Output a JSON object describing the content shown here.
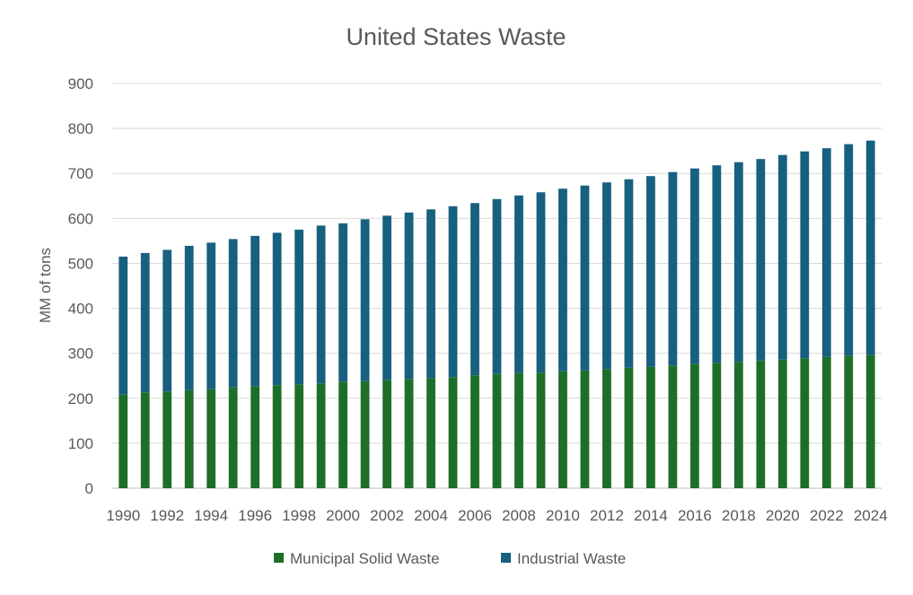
{
  "chart_data": {
    "type": "bar",
    "stacked": true,
    "title": "United States Waste",
    "xlabel": "",
    "ylabel": "MM of tons",
    "ylim": [
      0,
      900
    ],
    "yticks": [
      0,
      100,
      200,
      300,
      400,
      500,
      600,
      700,
      800,
      900
    ],
    "grid": true,
    "legend_position": "bottom",
    "categories": [
      "1990",
      "1991",
      "1992",
      "1993",
      "1994",
      "1995",
      "1996",
      "1997",
      "1998",
      "1999",
      "2000",
      "2001",
      "2002",
      "2003",
      "2004",
      "2005",
      "2006",
      "2007",
      "2008",
      "2009",
      "2010",
      "2011",
      "2012",
      "2013",
      "2014",
      "2015",
      "2016",
      "2017",
      "2018",
      "2019",
      "2020",
      "2021",
      "2022",
      "2023",
      "2024"
    ],
    "xtick_labels": [
      "1990",
      "1992",
      "1994",
      "1996",
      "1998",
      "2000",
      "2002",
      "2004",
      "2006",
      "2008",
      "2010",
      "2012",
      "2014",
      "2016",
      "2018",
      "2020",
      "2022",
      "2024"
    ],
    "series": [
      {
        "name": "Municipal Solid Waste",
        "color": "#1e6e2a",
        "values": [
          208,
          213,
          215,
          218,
          220,
          225,
          227,
          229,
          231,
          233,
          237,
          238,
          241,
          243,
          245,
          247,
          251,
          254,
          256,
          257,
          260,
          262,
          265,
          268,
          270,
          273,
          276,
          279,
          281,
          284,
          286,
          289,
          292,
          295,
          297
        ]
      },
      {
        "name": "Industrial Waste",
        "color": "#17607f",
        "values": [
          307,
          310,
          315,
          321,
          326,
          329,
          334,
          339,
          344,
          351,
          352,
          360,
          365,
          370,
          375,
          380,
          383,
          389,
          395,
          401,
          406,
          411,
          415,
          419,
          424,
          430,
          435,
          439,
          444,
          448,
          455,
          460,
          464,
          470,
          476
        ]
      }
    ]
  }
}
